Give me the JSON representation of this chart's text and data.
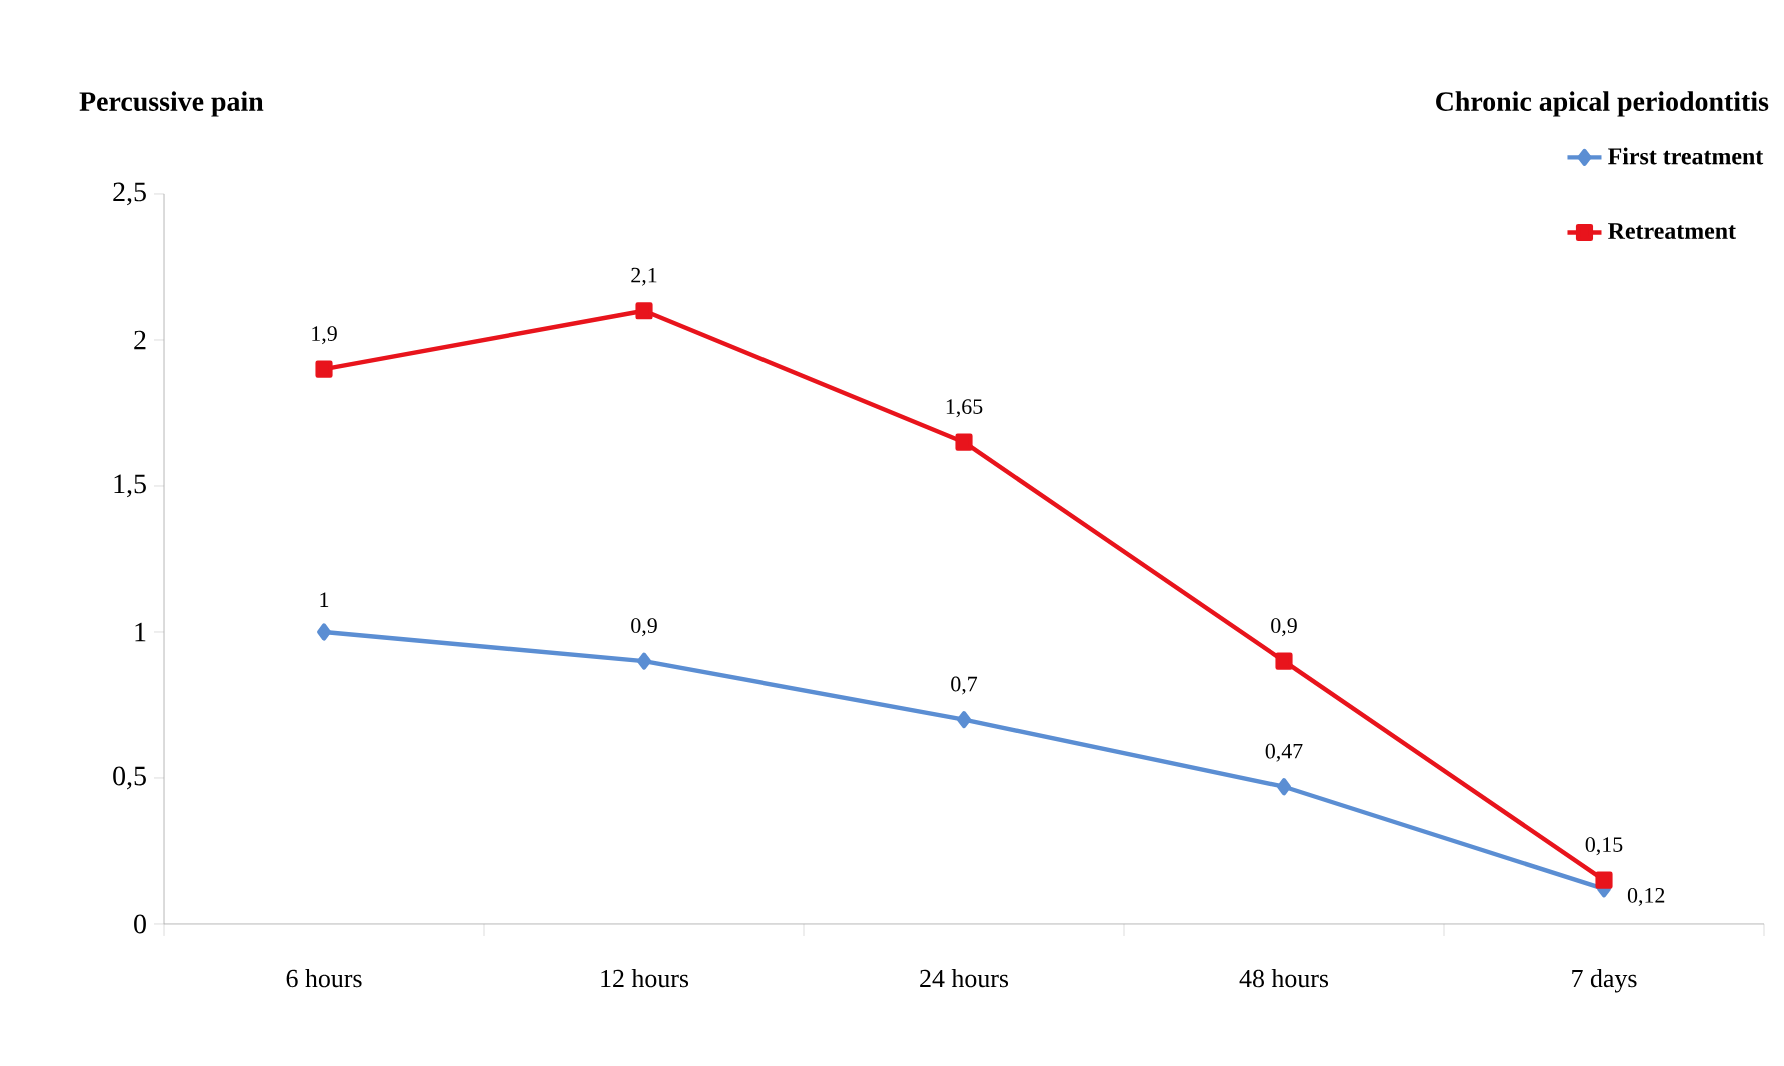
{
  "chart_data": {
    "type": "line",
    "title": "Percussive pain",
    "subtitle": "Chronic apical periodontitis",
    "categories": [
      "6 hours",
      "12 hours",
      "24 hours",
      "48 hours",
      "7 days"
    ],
    "ylim": [
      0,
      2.5
    ],
    "yticks": [
      0,
      {
        "value": 0.5,
        "label": "0,5"
      },
      1,
      {
        "value": 1.5,
        "label": "1,5"
      },
      2,
      {
        "value": 2.5,
        "label": "2,5"
      }
    ],
    "legend": "top right",
    "series": [
      {
        "name": "First treatment",
        "color": "#5b8ed3",
        "marker": "diamond",
        "values": [
          1,
          0.9,
          0.7,
          0.47,
          0.12
        ],
        "value_labels": [
          "1",
          "0,9",
          "0,7",
          "0,47",
          "0,12"
        ]
      },
      {
        "name": "Retreatment",
        "color": "#e8141c",
        "marker": "square",
        "values": [
          1.9,
          2.1,
          1.65,
          0.9,
          0.15
        ],
        "value_labels": [
          "1,9",
          "2,1",
          "1,65",
          "0,9",
          "0,15"
        ]
      }
    ]
  }
}
